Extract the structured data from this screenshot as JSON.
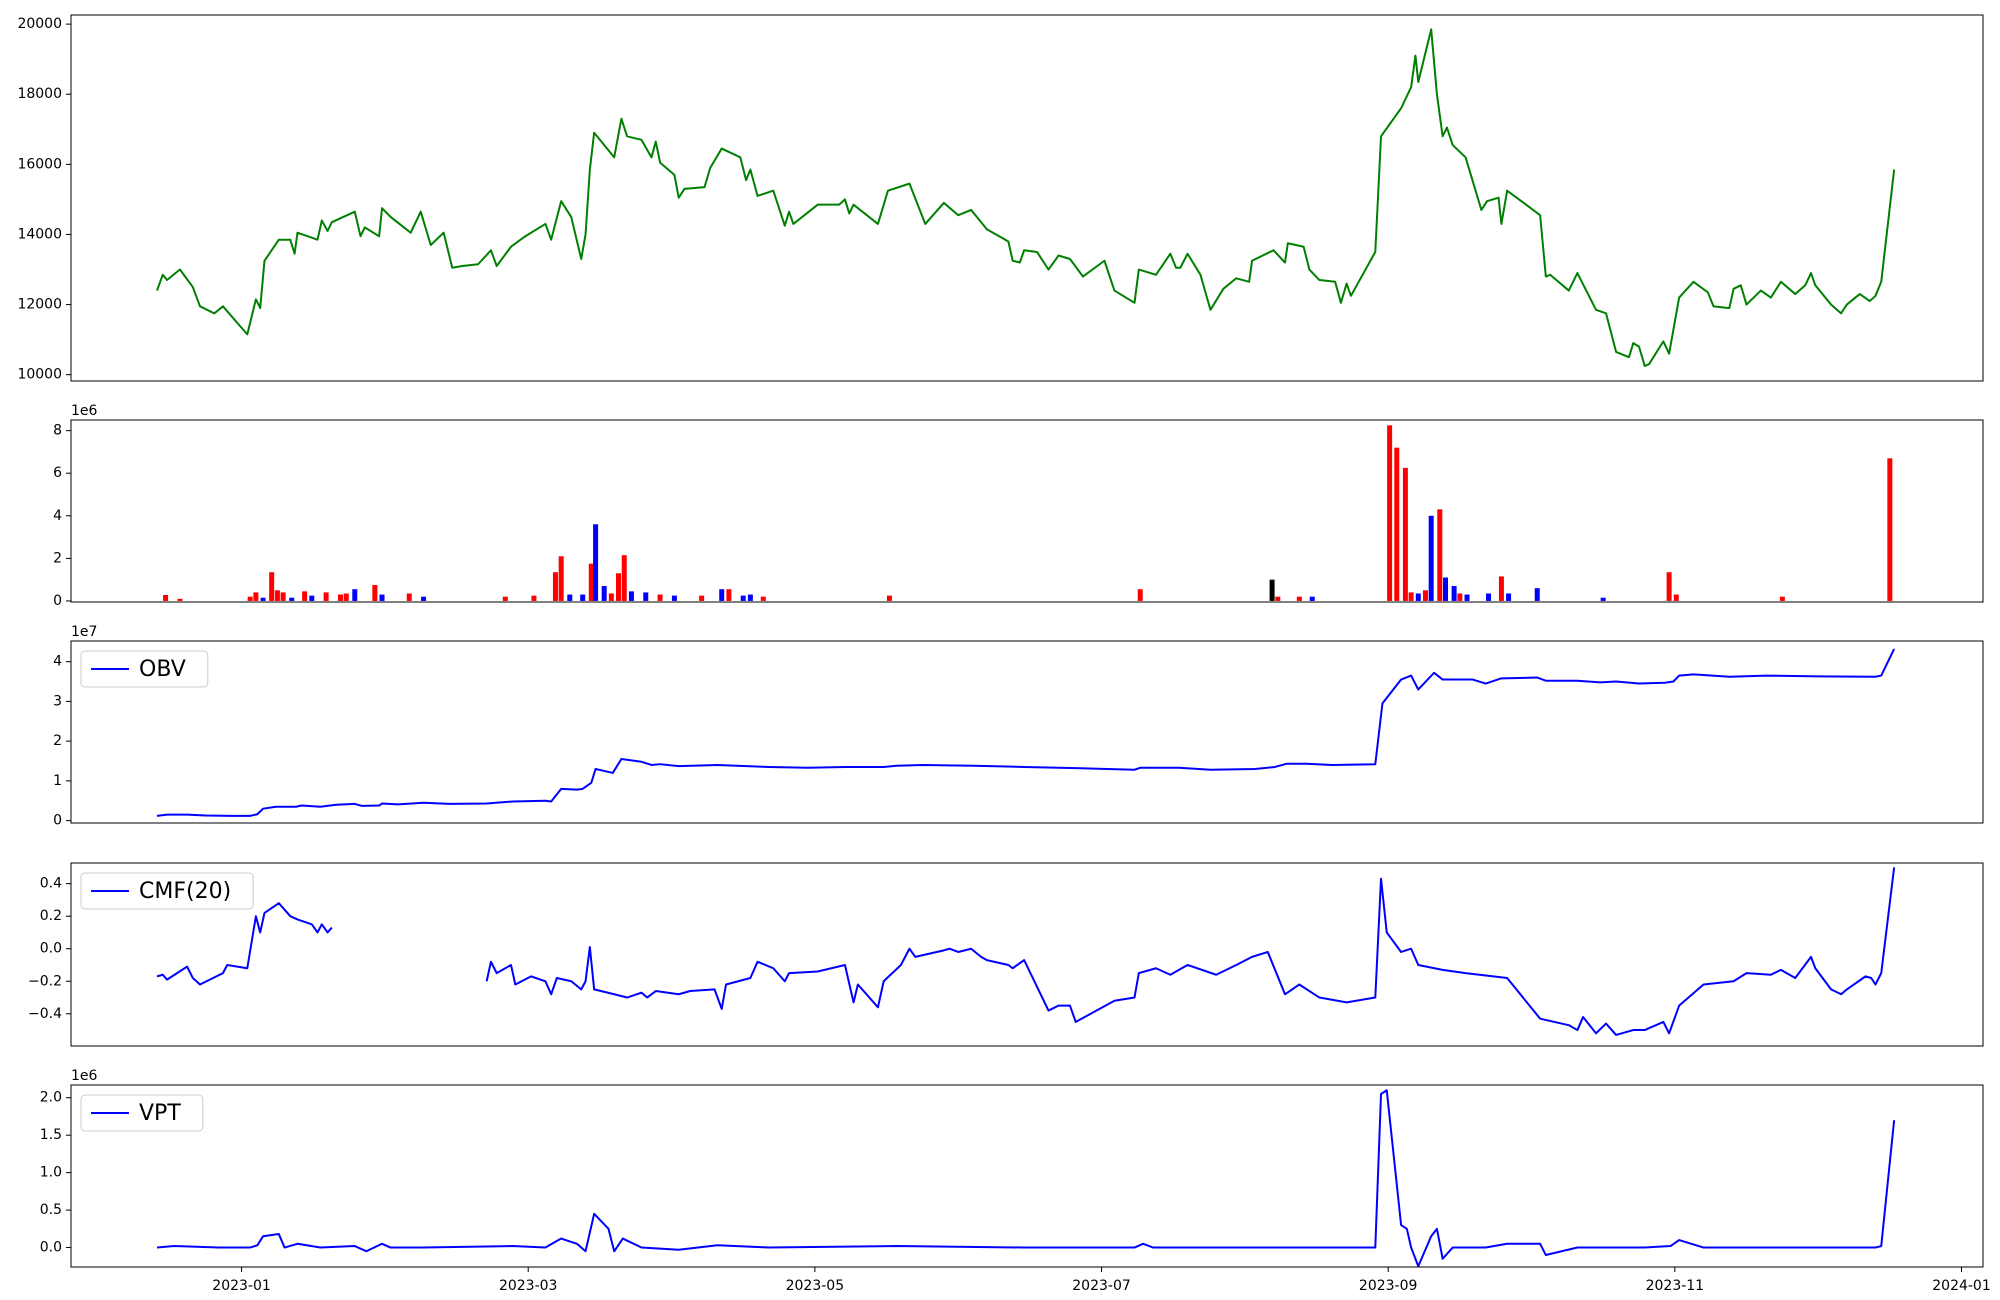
{
  "chart_data": [
    {
      "type": "line",
      "xlim": [
        -1.19,
        12.15
      ],
      "ylim": [
        9820,
        20260
      ],
      "yticks": [
        10000,
        12000,
        14000,
        16000,
        18000,
        20000
      ],
      "x": [
        -0.59,
        -0.55,
        -0.52,
        -0.43,
        -0.34,
        -0.29,
        -0.19,
        -0.13,
        0.04,
        0.1,
        0.13,
        0.16,
        0.26,
        0.34,
        0.37,
        0.39,
        0.53,
        0.56,
        0.6,
        0.63,
        0.79,
        0.83,
        0.86,
        0.96,
        0.98,
        1.04,
        1.18,
        1.25,
        1.32,
        1.41,
        1.47,
        1.54,
        1.65,
        1.74,
        1.78,
        1.88,
        1.98,
        2.12,
        2.16,
        2.23,
        2.3,
        2.37,
        2.4,
        2.43,
        2.46,
        2.6,
        2.65,
        2.69,
        2.79,
        2.86,
        2.89,
        2.92,
        3.02,
        3.05,
        3.09,
        3.23,
        3.27,
        3.35,
        3.48,
        3.52,
        3.55,
        3.6,
        3.71,
        3.79,
        3.82,
        3.85,
        4.02,
        4.17,
        4.21,
        4.24,
        4.27,
        4.44,
        4.51,
        4.66,
        4.77,
        4.9,
        5.0,
        5.09,
        5.2,
        5.35,
        5.38,
        5.43,
        5.46,
        5.55,
        5.63,
        5.7,
        5.78,
        5.87,
        6.02,
        6.09,
        6.23,
        6.26,
        6.38,
        6.48,
        6.52,
        6.55,
        6.6,
        6.69,
        6.76,
        6.85,
        6.94,
        7.03,
        7.05,
        7.2,
        7.28,
        7.3,
        7.41,
        7.45,
        7.52,
        7.63,
        7.67,
        7.71,
        7.74,
        7.91,
        7.95,
        8.09,
        8.16,
        8.19,
        8.21,
        8.3,
        8.34,
        8.38,
        8.41,
        8.45,
        8.54,
        8.65,
        8.69,
        8.77,
        8.79,
        8.83,
        9.06,
        9.1,
        9.13,
        9.26,
        9.32,
        9.45,
        9.52,
        9.59,
        9.68,
        9.71,
        9.75,
        9.79,
        9.82,
        9.92,
        9.96,
        10.03,
        10.13,
        10.23,
        10.27,
        10.38,
        10.41,
        10.46,
        10.5,
        10.6,
        10.67,
        10.74,
        10.84,
        10.91,
        10.95,
        10.98,
        11.09,
        11.16,
        11.2,
        11.29,
        11.36,
        11.4,
        11.44,
        11.53
      ],
      "series": [
        {
          "color": "green",
          "values": [
            12400,
            12850,
            12700,
            13000,
            12500,
            11950,
            11750,
            11950,
            11150,
            12150,
            11900,
            13250,
            13850,
            13850,
            13450,
            14050,
            13850,
            14400,
            14100,
            14350,
            14650,
            13950,
            14200,
            13950,
            14750,
            14500,
            14050,
            14650,
            13700,
            14050,
            13050,
            13100,
            13150,
            13550,
            13100,
            13650,
            13950,
            14300,
            13850,
            14950,
            14500,
            13300,
            14000,
            15850,
            16900,
            16200,
            17300,
            16800,
            16700,
            16200,
            16650,
            16050,
            15700,
            15050,
            15300,
            15350,
            15900,
            16450,
            16200,
            15550,
            15850,
            15100,
            15250,
            14250,
            14650,
            14300,
            14850,
            14850,
            15000,
            14600,
            14850,
            14300,
            15250,
            15450,
            14300,
            14900,
            14550,
            14700,
            14150,
            13800,
            13250,
            13200,
            13550,
            13500,
            13000,
            13400,
            13300,
            12800,
            13250,
            12400,
            12050,
            13000,
            12850,
            13450,
            13050,
            13050,
            13450,
            12850,
            11850,
            12450,
            12750,
            12650,
            13250,
            13550,
            13200,
            13750,
            13650,
            13000,
            12700,
            12650,
            12050,
            12600,
            12250,
            13500,
            16800,
            17600,
            18200,
            19100,
            18350,
            19850,
            18000,
            16800,
            17050,
            16550,
            16200,
            14700,
            14950,
            15050,
            14300,
            15250,
            14550,
            12800,
            12850,
            12400,
            12900,
            11850,
            11750,
            10650,
            10500,
            10900,
            10800,
            10250,
            10300,
            10950,
            10600,
            12200,
            12650,
            12350,
            11950,
            11900,
            12450,
            12550,
            12000,
            12400,
            12200,
            12650,
            12300,
            12550,
            12900,
            12550,
            12000,
            11750,
            12000,
            12300,
            12100,
            12250,
            12650,
            15850
          ]
        }
      ]
    },
    {
      "type": "bar",
      "offset_label": "1e6",
      "xlim": [
        -1.19,
        12.15
      ],
      "ylim": [
        -0.05,
        8.5
      ],
      "yticks": [
        0,
        2,
        4,
        6,
        8
      ],
      "x": [
        -0.53,
        -0.43,
        0.06,
        0.1,
        0.15,
        0.21,
        0.25,
        0.29,
        0.35,
        0.44,
        0.49,
        0.59,
        0.69,
        0.73,
        0.79,
        0.93,
        0.98,
        1.17,
        1.27,
        1.84,
        2.04,
        2.19,
        2.23,
        2.29,
        2.38,
        2.44,
        2.47,
        2.53,
        2.58,
        2.63,
        2.67,
        2.72,
        2.82,
        2.92,
        3.02,
        3.21,
        3.35,
        3.4,
        3.5,
        3.55,
        3.64,
        4.52,
        6.27,
        7.19,
        7.23,
        7.38,
        7.47,
        8.01,
        8.06,
        8.12,
        8.16,
        8.21,
        8.26,
        8.3,
        8.36,
        8.4,
        8.46,
        8.5,
        8.55,
        8.7,
        8.79,
        8.84,
        9.04,
        9.5,
        9.96,
        10.01,
        10.75,
        11.5
      ],
      "values": [
        0.28,
        0.1,
        0.2,
        0.4,
        0.15,
        1.35,
        0.5,
        0.4,
        0.15,
        0.45,
        0.25,
        0.4,
        0.3,
        0.35,
        0.55,
        0.75,
        0.3,
        0.35,
        0.2,
        0.2,
        0.25,
        1.35,
        2.1,
        0.3,
        0.3,
        1.75,
        3.6,
        0.7,
        0.35,
        1.3,
        2.15,
        0.45,
        0.4,
        0.3,
        0.25,
        0.25,
        0.55,
        0.55,
        0.25,
        0.3,
        0.2,
        0.25,
        0.55,
        1.0,
        0.2,
        0.2,
        0.2,
        8.25,
        7.2,
        6.25,
        0.4,
        0.35,
        0.5,
        4.0,
        4.3,
        1.1,
        0.7,
        0.35,
        0.3,
        0.35,
        1.15,
        0.35,
        0.6,
        0.15,
        1.35,
        0.3,
        0.2,
        6.7
      ],
      "colors": [
        "red",
        "red",
        "red",
        "red",
        "blue",
        "red",
        "red",
        "red",
        "blue",
        "red",
        "blue",
        "red",
        "red",
        "red",
        "blue",
        "red",
        "blue",
        "red",
        "blue",
        "red",
        "red",
        "red",
        "red",
        "blue",
        "blue",
        "red",
        "blue",
        "blue",
        "red",
        "red",
        "red",
        "blue",
        "blue",
        "red",
        "blue",
        "red",
        "blue",
        "red",
        "blue",
        "blue",
        "red",
        "red",
        "red",
        "black",
        "red",
        "red",
        "blue",
        "red",
        "red",
        "red",
        "red",
        "blue",
        "red",
        "blue",
        "red",
        "blue",
        "blue",
        "red",
        "blue",
        "blue",
        "red",
        "blue",
        "blue",
        "blue",
        "red",
        "red",
        "red",
        "red"
      ]
    },
    {
      "type": "line",
      "offset_label": "1e7",
      "legend": "upper left",
      "xlim": [
        -1.19,
        12.15
      ],
      "ylim": [
        -0.06,
        4.52
      ],
      "yticks": [
        0,
        1,
        2,
        3,
        4
      ],
      "x": [
        -0.59,
        -0.52,
        -0.38,
        -0.25,
        -0.07,
        0.06,
        0.11,
        0.15,
        0.24,
        0.38,
        0.42,
        0.55,
        0.66,
        0.79,
        0.84,
        0.96,
        0.98,
        1.09,
        1.27,
        1.45,
        1.71,
        1.89,
        2.12,
        2.16,
        2.23,
        2.34,
        2.38,
        2.44,
        2.47,
        2.59,
        2.65,
        2.79,
        2.86,
        2.92,
        3.05,
        3.32,
        3.68,
        3.95,
        4.21,
        4.48,
        4.57,
        4.75,
        5.11,
        5.46,
        5.82,
        6.23,
        6.27,
        6.54,
        6.76,
        7.07,
        7.21,
        7.29,
        7.43,
        7.61,
        7.91,
        7.96,
        8.09,
        8.16,
        8.21,
        8.32,
        8.38,
        8.59,
        8.68,
        8.79,
        9.04,
        9.1,
        9.32,
        9.48,
        9.59,
        9.75,
        9.93,
        9.99,
        10.03,
        10.13,
        10.38,
        10.64,
        11.0,
        11.4,
        11.44,
        11.53
      ],
      "series": [
        {
          "name": "OBV",
          "color": "blue",
          "values": [
            0.12,
            0.15,
            0.15,
            0.13,
            0.12,
            0.12,
            0.16,
            0.3,
            0.35,
            0.35,
            0.38,
            0.35,
            0.4,
            0.42,
            0.37,
            0.38,
            0.43,
            0.41,
            0.45,
            0.42,
            0.43,
            0.48,
            0.5,
            0.48,
            0.8,
            0.78,
            0.8,
            0.95,
            1.3,
            1.2,
            1.55,
            1.48,
            1.4,
            1.42,
            1.37,
            1.4,
            1.35,
            1.33,
            1.35,
            1.35,
            1.38,
            1.4,
            1.38,
            1.35,
            1.32,
            1.28,
            1.33,
            1.33,
            1.28,
            1.3,
            1.35,
            1.43,
            1.43,
            1.4,
            1.42,
            2.95,
            3.55,
            3.65,
            3.3,
            3.72,
            3.55,
            3.55,
            3.45,
            3.58,
            3.6,
            3.52,
            3.52,
            3.48,
            3.5,
            3.45,
            3.47,
            3.5,
            3.65,
            3.68,
            3.62,
            3.65,
            3.63,
            3.62,
            3.65,
            4.32
          ]
        }
      ]
    },
    {
      "type": "line",
      "legend": "upper left",
      "xlim": [
        -1.19,
        12.15
      ],
      "ylim": [
        -0.598,
        0.527
      ],
      "yticks": [
        {
          "value": -0.4,
          "label": "−0.4"
        },
        {
          "value": -0.2,
          "label": "−0.2"
        },
        {
          "value": 0,
          "label": "0.0"
        },
        0.2,
        0.4
      ],
      "x": [
        -0.59,
        -0.55,
        -0.52,
        -0.38,
        -0.34,
        -0.29,
        -0.13,
        -0.1,
        0.04,
        0.1,
        0.13,
        0.16,
        0.26,
        0.34,
        0.39,
        0.49,
        0.53,
        0.56,
        0.6,
        0.63,
        1.18,
        1.71,
        1.74,
        1.78,
        1.88,
        1.91,
        2.02,
        2.12,
        2.16,
        2.2,
        2.3,
        2.37,
        2.4,
        2.43,
        2.46,
        2.6,
        2.69,
        2.79,
        2.83,
        2.89,
        3.05,
        3.13,
        3.3,
        3.35,
        3.38,
        3.55,
        3.6,
        3.71,
        3.79,
        3.82,
        4.02,
        4.21,
        4.27,
        4.3,
        4.44,
        4.48,
        4.6,
        4.66,
        4.7,
        4.9,
        4.94,
        5.0,
        5.09,
        5.16,
        5.2,
        5.35,
        5.38,
        5.46,
        5.63,
        5.7,
        5.78,
        5.82,
        6.09,
        6.23,
        6.26,
        6.38,
        6.48,
        6.6,
        6.8,
        6.94,
        7.05,
        7.16,
        7.28,
        7.38,
        7.52,
        7.71,
        7.91,
        7.95,
        7.99,
        8.09,
        8.16,
        8.21,
        8.38,
        8.54,
        8.83,
        9.06,
        9.26,
        9.32,
        9.36,
        9.45,
        9.52,
        9.59,
        9.71,
        9.79,
        9.92,
        9.96,
        10.03,
        10.2,
        10.41,
        10.5,
        10.67,
        10.74,
        10.84,
        10.95,
        10.98,
        11.09,
        11.16,
        11.2,
        11.33,
        11.37,
        11.4,
        11.44,
        11.53
      ],
      "series": [
        {
          "name": "CMF(20)",
          "color": "blue",
          "values": [
            -0.17,
            -0.16,
            -0.19,
            -0.11,
            -0.18,
            -0.22,
            -0.15,
            -0.1,
            -0.12,
            0.2,
            0.1,
            0.22,
            0.28,
            0.2,
            0.18,
            0.15,
            0.1,
            0.15,
            0.1,
            0.13,
            null,
            -0.2,
            -0.08,
            -0.15,
            -0.1,
            -0.22,
            -0.17,
            -0.2,
            -0.28,
            -0.18,
            -0.2,
            -0.25,
            -0.2,
            0.01,
            -0.25,
            -0.28,
            -0.3,
            -0.27,
            -0.3,
            -0.26,
            -0.28,
            -0.26,
            -0.25,
            -0.37,
            -0.22,
            -0.18,
            -0.08,
            -0.12,
            -0.2,
            -0.15,
            -0.14,
            -0.1,
            -0.33,
            -0.22,
            -0.36,
            -0.2,
            -0.1,
            0.0,
            -0.05,
            -0.01,
            0.0,
            -0.02,
            0.0,
            -0.05,
            -0.07,
            -0.1,
            -0.12,
            -0.07,
            -0.38,
            -0.35,
            -0.35,
            -0.45,
            -0.32,
            -0.3,
            -0.15,
            -0.12,
            -0.16,
            -0.1,
            -0.16,
            -0.1,
            -0.05,
            -0.02,
            -0.28,
            -0.22,
            -0.3,
            -0.33,
            -0.3,
            0.43,
            0.1,
            -0.02,
            0.0,
            -0.1,
            -0.13,
            -0.15,
            -0.18,
            -0.43,
            -0.47,
            -0.5,
            -0.42,
            -0.52,
            -0.46,
            -0.53,
            -0.5,
            -0.5,
            -0.45,
            -0.52,
            -0.35,
            -0.22,
            -0.2,
            -0.15,
            -0.16,
            -0.13,
            -0.18,
            -0.05,
            -0.12,
            -0.25,
            -0.28,
            -0.25,
            -0.17,
            -0.18,
            -0.22,
            -0.15,
            0.5
          ]
        }
      ]
    },
    {
      "type": "line",
      "offset_label": "1e6",
      "legend": "upper left",
      "xlim": [
        -1.19,
        12.15
      ],
      "ylim": [
        -0.26,
        2.17
      ],
      "yticks": [
        {
          "value": 0,
          "label": "0.0"
        },
        0.5,
        {
          "value": 1,
          "label": "1.0"
        },
        1.5,
        {
          "value": 2,
          "label": "2.0"
        }
      ],
      "xticks": [
        {
          "value": 0,
          "label": "2023-01"
        },
        {
          "value": 2,
          "label": "2023-03"
        },
        {
          "value": 4,
          "label": "2023-05"
        },
        {
          "value": 6,
          "label": "2023-07"
        },
        {
          "value": 8,
          "label": "2023-09"
        },
        {
          "value": 10,
          "label": "2023-11"
        },
        {
          "value": 12,
          "label": "2024-01"
        }
      ],
      "x": [
        -0.59,
        -0.47,
        -0.16,
        0.06,
        0.11,
        0.15,
        0.26,
        0.3,
        0.39,
        0.55,
        0.79,
        0.87,
        0.98,
        1.04,
        1.27,
        1.89,
        2.12,
        2.23,
        2.34,
        2.4,
        2.46,
        2.56,
        2.6,
        2.66,
        2.79,
        3.05,
        3.32,
        3.68,
        4.57,
        5.46,
        6.23,
        6.29,
        6.36,
        7.25,
        7.91,
        7.95,
        7.99,
        8.09,
        8.13,
        8.16,
        8.21,
        8.3,
        8.34,
        8.38,
        8.45,
        8.68,
        8.83,
        9.06,
        9.1,
        9.32,
        9.79,
        9.97,
        10.03,
        10.2,
        10.82,
        11.4,
        11.44,
        11.53
      ],
      "series": [
        {
          "name": "VPT",
          "color": "blue",
          "values": [
            0.0,
            0.02,
            0.0,
            0.0,
            0.03,
            0.15,
            0.18,
            0.0,
            0.05,
            0.0,
            0.02,
            -0.05,
            0.05,
            0.0,
            0.0,
            0.02,
            0.0,
            0.12,
            0.05,
            -0.05,
            0.45,
            0.25,
            -0.05,
            0.12,
            0.0,
            -0.03,
            0.03,
            0.0,
            0.02,
            0.0,
            0.0,
            0.05,
            0.0,
            0.0,
            0.0,
            2.05,
            2.1,
            0.3,
            0.25,
            0.0,
            -0.25,
            0.15,
            0.25,
            -0.15,
            0.0,
            0.0,
            0.05,
            0.05,
            -0.1,
            0.0,
            0.0,
            0.02,
            0.1,
            0.0,
            0.0,
            0.0,
            0.02,
            1.7
          ]
        }
      ]
    }
  ]
}
